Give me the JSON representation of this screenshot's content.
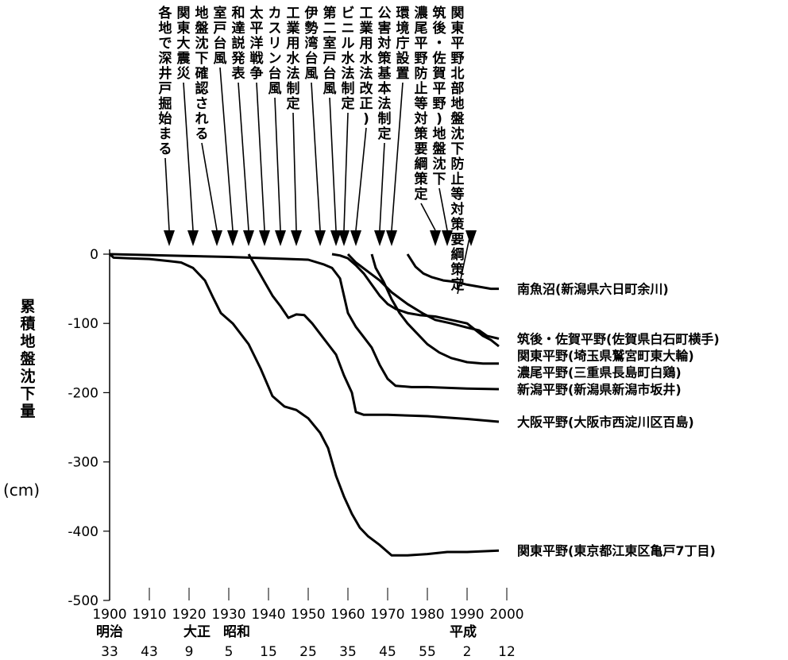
{
  "chart_data": {
    "type": "line",
    "ylabel": "累積地盤沈下量",
    "yunit": "(cm)",
    "ylim": [
      -500,
      0
    ],
    "yticks": [
      0,
      -100,
      -200,
      -300,
      -400,
      -500
    ],
    "xlim": [
      1900,
      2000
    ],
    "xticks": [
      1900,
      1910,
      1920,
      1930,
      1940,
      1950,
      1960,
      1970,
      1980,
      1990,
      2000
    ],
    "xtick_labels": [
      "1900",
      "1910",
      "1920",
      "1930",
      "1940",
      "1950",
      "1960",
      "1970",
      "1980",
      "1990",
      "2000"
    ],
    "eras": [
      {
        "x": 1900,
        "label": "明治"
      },
      {
        "x": 1922,
        "label": "大正"
      },
      {
        "x": 1932,
        "label": "昭和"
      },
      {
        "x": 1989,
        "label": "平成"
      }
    ],
    "era_years": [
      {
        "x": 1900,
        "label": "33"
      },
      {
        "x": 1910,
        "label": "43"
      },
      {
        "x": 1920,
        "label": "9"
      },
      {
        "x": 1930,
        "label": "5"
      },
      {
        "x": 1940,
        "label": "15"
      },
      {
        "x": 1950,
        "label": "25"
      },
      {
        "x": 1960,
        "label": "35"
      },
      {
        "x": 1970,
        "label": "45"
      },
      {
        "x": 1980,
        "label": "55"
      },
      {
        "x": 1990,
        "label": "2"
      },
      {
        "x": 2000,
        "label": "12"
      }
    ],
    "events": [
      {
        "x": 1915,
        "text": "各地で深井戸掘始まる"
      },
      {
        "x": 1921,
        "text": "関東大震災"
      },
      {
        "x": 1927,
        "text": "地盤沈下確認される"
      },
      {
        "x": 1931,
        "text": "室戸台風"
      },
      {
        "x": 1935,
        "text": "和達説発表"
      },
      {
        "x": 1939,
        "text": "太平洋戦争"
      },
      {
        "x": 1943,
        "text": "カスリン台風"
      },
      {
        "x": 1947,
        "text": "工業用水法制定"
      },
      {
        "x": 1953,
        "text": "伊勢湾台風"
      },
      {
        "x": 1957,
        "text": "第二室戸台風"
      },
      {
        "x": 1959,
        "text": "ビニル水法制定"
      },
      {
        "x": 1962,
        "text": "工業用水法改正)"
      },
      {
        "x": 1968,
        "text": "公害対策基本法制定"
      },
      {
        "x": 1971,
        "text": "環境庁設置"
      },
      {
        "x": 1982,
        "text": "濃尾平野防止等対策要綱策定"
      },
      {
        "x": 1985,
        "text": "筑後・佐賀平野)地盤沈下"
      },
      {
        "x": 1991,
        "text": "関東平野北部地盤沈下防止等対策要綱策定"
      }
    ],
    "series": [
      {
        "name": "南魚沼(新潟県六日町余川)",
        "points": [
          [
            1975,
            0
          ],
          [
            1977,
            -18
          ],
          [
            1979,
            -28
          ],
          [
            1981,
            -33
          ],
          [
            1984,
            -38
          ],
          [
            1987,
            -40
          ],
          [
            1990,
            -44
          ],
          [
            1993,
            -47
          ],
          [
            1996,
            -50
          ],
          [
            1998,
            -50
          ]
        ]
      },
      {
        "name": "筑後・佐賀平野(佐賀県白石町横手)",
        "points": [
          [
            1960,
            0
          ],
          [
            1962,
            -12
          ],
          [
            1965,
            -25
          ],
          [
            1968,
            -38
          ],
          [
            1971,
            -55
          ],
          [
            1975,
            -72
          ],
          [
            1979,
            -86
          ],
          [
            1982,
            -95
          ],
          [
            1986,
            -100
          ],
          [
            1990,
            -106
          ],
          [
            1993,
            -110
          ],
          [
            1995,
            -118
          ],
          [
            1998,
            -122
          ]
        ]
      },
      {
        "name": "関東平野(埼玉県鷲宮町東大輪)",
        "points": [
          [
            1956,
            0
          ],
          [
            1958,
            -2
          ],
          [
            1960,
            -6
          ],
          [
            1962,
            -16
          ],
          [
            1964,
            -28
          ],
          [
            1966,
            -44
          ],
          [
            1968,
            -60
          ],
          [
            1970,
            -72
          ],
          [
            1972,
            -79
          ],
          [
            1975,
            -85
          ],
          [
            1978,
            -88
          ],
          [
            1982,
            -90
          ],
          [
            1986,
            -95
          ],
          [
            1990,
            -100
          ],
          [
            1994,
            -118
          ],
          [
            1996,
            -124
          ],
          [
            1998,
            -133
          ]
        ]
      },
      {
        "name": "濃尾平野(三重県長島町白鶏)",
        "points": [
          [
            1966,
            0
          ],
          [
            1967,
            -20
          ],
          [
            1969,
            -40
          ],
          [
            1971,
            -65
          ],
          [
            1973,
            -85
          ],
          [
            1975,
            -100
          ],
          [
            1977,
            -112
          ],
          [
            1980,
            -130
          ],
          [
            1983,
            -142
          ],
          [
            1986,
            -150
          ],
          [
            1990,
            -156
          ],
          [
            1994,
            -158
          ],
          [
            1998,
            -158
          ]
        ]
      },
      {
        "name": "新潟平野(新潟県新潟市坂井)",
        "points": [
          [
            1900,
            0
          ],
          [
            1930,
            -4
          ],
          [
            1950,
            -8
          ],
          [
            1954,
            -15
          ],
          [
            1956,
            -20
          ],
          [
            1958,
            -35
          ],
          [
            1960,
            -85
          ],
          [
            1962,
            -105
          ],
          [
            1964,
            -120
          ],
          [
            1966,
            -135
          ],
          [
            1968,
            -160
          ],
          [
            1970,
            -180
          ],
          [
            1972,
            -190
          ],
          [
            1976,
            -192
          ],
          [
            1980,
            -192
          ],
          [
            1990,
            -194
          ],
          [
            1998,
            -195
          ]
        ]
      },
      {
        "name": "大阪平野(大阪市西淀川区百島)",
        "points": [
          [
            1935,
            0
          ],
          [
            1937,
            -20
          ],
          [
            1939,
            -40
          ],
          [
            1941,
            -60
          ],
          [
            1943,
            -75
          ],
          [
            1945,
            -92
          ],
          [
            1947,
            -87
          ],
          [
            1949,
            -88
          ],
          [
            1951,
            -100
          ],
          [
            1953,
            -115
          ],
          [
            1955,
            -130
          ],
          [
            1957,
            -145
          ],
          [
            1959,
            -175
          ],
          [
            1961,
            -200
          ],
          [
            1962,
            -228
          ],
          [
            1964,
            -232
          ],
          [
            1970,
            -232
          ],
          [
            1980,
            -234
          ],
          [
            1990,
            -238
          ],
          [
            1998,
            -242
          ]
        ]
      },
      {
        "name": "関東平野(東京都江東区亀戸7丁目)",
        "points": [
          [
            1900,
            0
          ],
          [
            1901,
            -5
          ],
          [
            1905,
            -6
          ],
          [
            1910,
            -7
          ],
          [
            1915,
            -10
          ],
          [
            1918,
            -12
          ],
          [
            1921,
            -20
          ],
          [
            1924,
            -38
          ],
          [
            1926,
            -62
          ],
          [
            1928,
            -85
          ],
          [
            1931,
            -100
          ],
          [
            1935,
            -130
          ],
          [
            1938,
            -165
          ],
          [
            1941,
            -205
          ],
          [
            1944,
            -220
          ],
          [
            1947,
            -225
          ],
          [
            1950,
            -237
          ],
          [
            1953,
            -258
          ],
          [
            1955,
            -280
          ],
          [
            1957,
            -320
          ],
          [
            1959,
            -350
          ],
          [
            1961,
            -375
          ],
          [
            1963,
            -395
          ],
          [
            1965,
            -407
          ],
          [
            1968,
            -420
          ],
          [
            1971,
            -435
          ],
          [
            1975,
            -435
          ],
          [
            1980,
            -433
          ],
          [
            1985,
            -430
          ],
          [
            1990,
            -430
          ],
          [
            1998,
            -428
          ]
        ]
      }
    ]
  }
}
